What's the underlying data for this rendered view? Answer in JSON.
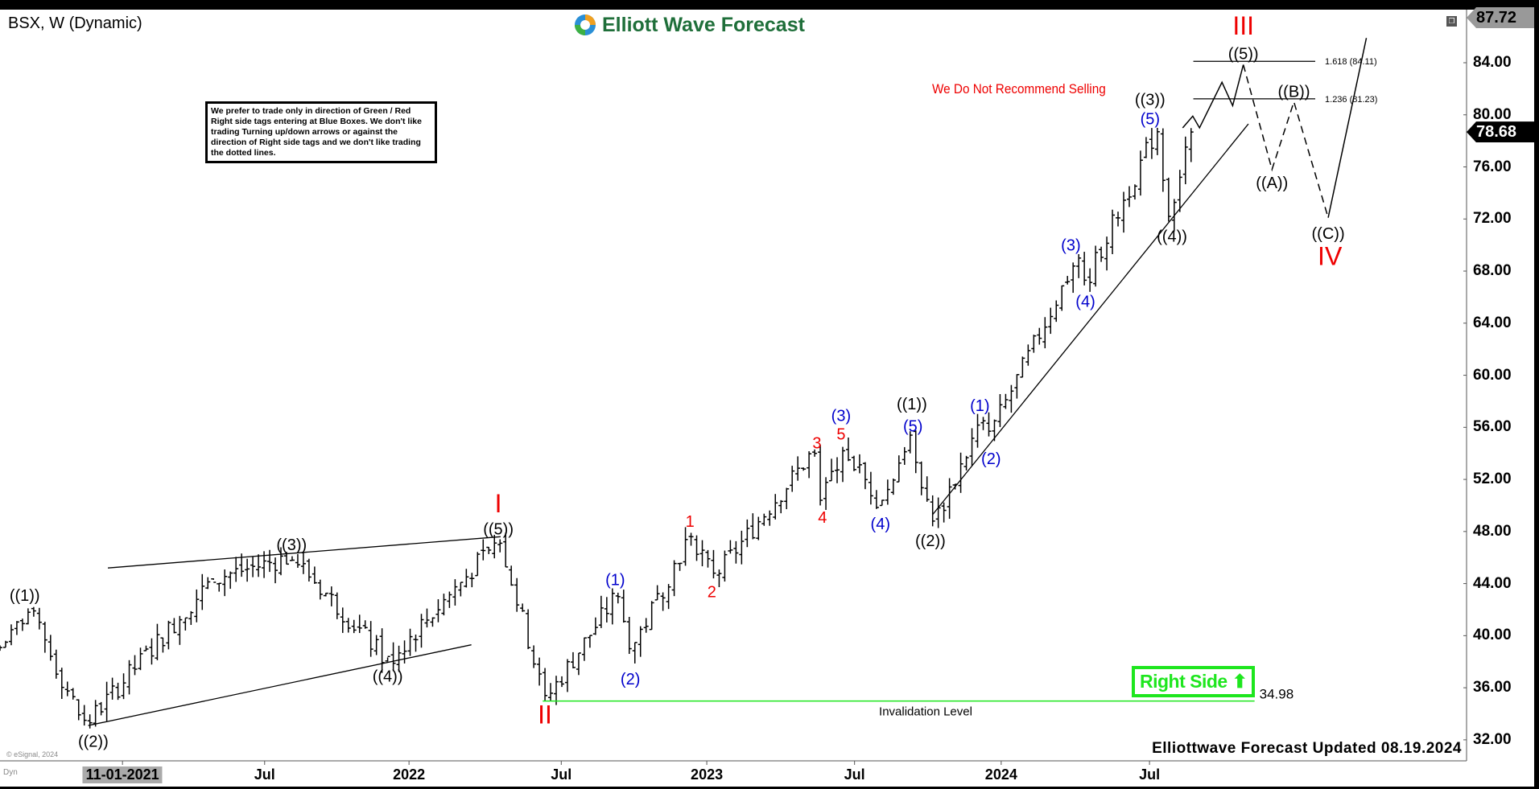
{
  "header": {
    "title": "BSX, W (Dynamic)",
    "logo_text": "Elliott Wave Forecast"
  },
  "note": "We prefer to trade only in direction of Green / Red Right side tags entering at Blue Boxes. We don't like trading Turning up/down arrows or against the direction of Right side tags and we don't like trading the dotted lines.",
  "warning": "We Do Not Recommend Selling",
  "right_side": {
    "label": "Right Side",
    "arrow": "⬆",
    "color": "#1ee61e"
  },
  "footer": {
    "updated": "Elliottwave Forecast Updated 08.19.2024",
    "copyright": "© eSignal, 2024",
    "dyn": "Dyn"
  },
  "chart_data": {
    "type": "ohlc",
    "symbol": "BSX",
    "interval": "W",
    "x_unit": "weeks since start (≈ Aug 2020)",
    "ylim": [
      31,
      88
    ],
    "y_ticks": [
      32,
      36,
      40,
      44,
      48,
      52,
      56,
      60,
      64,
      68,
      72,
      76,
      80,
      84
    ],
    "y_tick_labels": [
      "32.00",
      "36.00",
      "40.00",
      "44.00",
      "48.00",
      "52.00",
      "56.00",
      "60.00",
      "64.00",
      "68.00",
      "72.00",
      "76.00",
      "80.00",
      "84.00"
    ],
    "x_ticks": [
      {
        "week": 21.8,
        "label": "11-01-2021"
      },
      {
        "week": 47.1,
        "label": "Jul"
      },
      {
        "week": 72.8,
        "label": "2022"
      },
      {
        "week": 99.9,
        "label": "Jul"
      },
      {
        "week": 125.8,
        "label": "2023"
      },
      {
        "week": 152.1,
        "label": "Jul"
      },
      {
        "week": 178.2,
        "label": "2024"
      },
      {
        "week": 204.6,
        "label": "Jul"
      }
    ],
    "high_tag": "87.72",
    "last_price": "78.68",
    "last_close": 78.68,
    "price_path": [
      [
        1,
        39.1
      ],
      [
        5,
        42.1
      ],
      [
        15,
        33.1
      ],
      [
        38,
        44.4
      ],
      [
        52,
        46.1
      ],
      [
        69,
        38.0
      ],
      [
        89,
        47.4
      ],
      [
        97,
        35.0
      ],
      [
        110,
        43.3
      ],
      [
        112,
        38.6
      ],
      [
        123,
        47.9
      ],
      [
        127,
        44.4
      ],
      [
        145,
        54.3
      ],
      [
        146,
        50.0
      ],
      [
        150,
        54.5
      ],
      [
        157,
        50.0
      ],
      [
        162,
        55.7
      ],
      [
        166,
        48.4
      ],
      [
        175,
        56.8
      ],
      [
        176,
        55.3
      ],
      [
        192,
        69.3
      ],
      [
        193,
        66.9
      ],
      [
        206,
        79.0
      ],
      [
        208,
        71.8
      ],
      [
        212,
        78.68
      ]
    ],
    "projection": [
      {
        "pts": [
          [
            210.5,
            79.0
          ],
          [
            212.3,
            79.9
          ],
          [
            213.5,
            79.0
          ],
          [
            217.5,
            82.5
          ],
          [
            219.4,
            80.7
          ],
          [
            221.3,
            83.85
          ]
        ],
        "style": "solid"
      },
      {
        "pts": [
          [
            221.3,
            83.85
          ],
          [
            226.4,
            75.8
          ],
          [
            230.3,
            81.0
          ],
          [
            236.4,
            72.1
          ]
        ],
        "style": "dashed"
      },
      {
        "pts": [
          [
            236.4,
            72.1
          ],
          [
            243.2,
            85.9
          ]
        ],
        "style": "solid"
      }
    ],
    "fib_levels": [
      {
        "label": "1.618 (84.11)",
        "value": 84.11
      },
      {
        "label": "1.236 (81.23)",
        "value": 81.23
      }
    ],
    "fib_range": [
      212.4,
      234.1
    ],
    "trendlines": [
      [
        [
          19.2,
          45.2
        ],
        [
          89.1,
          47.6
        ]
      ],
      [
        [
          15.7,
          33.1
        ],
        [
          83.9,
          39.3
        ]
      ],
      [
        [
          166,
          49.3
        ],
        [
          222.2,
          79.3
        ]
      ]
    ],
    "invalidation": {
      "label": "Invalidation Level",
      "value": 34.98,
      "value_label": "34.98",
      "from": 96.6,
      "to": 223.3,
      "color": "#1ee61e"
    },
    "wave_labels": [
      {
        "t": "((1))",
        "w": 4.4,
        "p": 43.1,
        "c": "#000"
      },
      {
        "t": "((2))",
        "w": 16.6,
        "p": 31.9,
        "c": "#000"
      },
      {
        "t": "((3))",
        "w": 51.9,
        "p": 47.0,
        "c": "#000"
      },
      {
        "t": "((4))",
        "w": 69,
        "p": 36.9,
        "c": "#000"
      },
      {
        "t": "((5))",
        "w": 88.7,
        "p": 48.2,
        "c": "#000"
      },
      {
        "t": "I",
        "w": 88.7,
        "p": 49.9,
        "c": "#e00",
        "big": true
      },
      {
        "t": "II",
        "w": 97,
        "p": 33.7,
        "c": "#e00",
        "big": true
      },
      {
        "t": "(1)",
        "w": 109.5,
        "p": 44.3,
        "c": "#00c"
      },
      {
        "t": "(2)",
        "w": 112.2,
        "p": 36.7,
        "c": "#00c"
      },
      {
        "t": "1",
        "w": 122.8,
        "p": 48.8,
        "c": "#e00"
      },
      {
        "t": "2",
        "w": 126.7,
        "p": 43.4,
        "c": "#e00"
      },
      {
        "t": "3",
        "w": 145.4,
        "p": 54.8,
        "c": "#e00"
      },
      {
        "t": "4",
        "w": 146.4,
        "p": 49.1,
        "c": "#e00"
      },
      {
        "t": "5",
        "w": 149.7,
        "p": 55.5,
        "c": "#e00"
      },
      {
        "t": "(3)",
        "w": 149.7,
        "p": 56.9,
        "c": "#00c"
      },
      {
        "t": "(4)",
        "w": 156.7,
        "p": 48.6,
        "c": "#00c"
      },
      {
        "t": "((1))",
        "w": 162.3,
        "p": 57.8,
        "c": "#000"
      },
      {
        "t": "(5)",
        "w": 162.5,
        "p": 56.1,
        "c": "#00c"
      },
      {
        "t": "((2))",
        "w": 165.6,
        "p": 47.3,
        "c": "#000"
      },
      {
        "t": "(1)",
        "w": 174.4,
        "p": 57.7,
        "c": "#00c"
      },
      {
        "t": "(2)",
        "w": 176.4,
        "p": 53.6,
        "c": "#00c"
      },
      {
        "t": "(3)",
        "w": 190.6,
        "p": 70.0,
        "c": "#00c"
      },
      {
        "t": "(4)",
        "w": 193.2,
        "p": 65.7,
        "c": "#00c"
      },
      {
        "t": "((3))",
        "w": 204.7,
        "p": 81.2,
        "c": "#000"
      },
      {
        "t": "(5)",
        "w": 204.7,
        "p": 79.7,
        "c": "#00c"
      },
      {
        "t": "((4))",
        "w": 208.6,
        "p": 70.7,
        "c": "#000"
      },
      {
        "t": "III",
        "w": 221.3,
        "p": 86.6,
        "c": "#e00",
        "big": true
      },
      {
        "t": "((5))",
        "w": 221.3,
        "p": 84.7,
        "c": "#000"
      },
      {
        "t": "((B))",
        "w": 230.3,
        "p": 81.8,
        "c": "#000"
      },
      {
        "t": "((A))",
        "w": 226.4,
        "p": 74.8,
        "c": "#000"
      },
      {
        "t": "((C))",
        "w": 236.4,
        "p": 70.9,
        "c": "#000"
      },
      {
        "t": "IV",
        "w": 236.7,
        "p": 68.9,
        "c": "#e00",
        "big": true
      }
    ]
  }
}
